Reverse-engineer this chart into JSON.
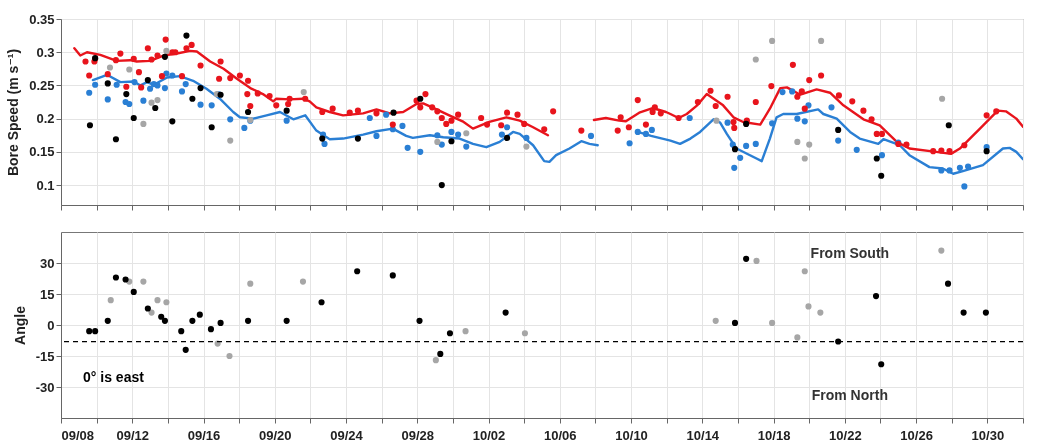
{
  "chart_data": [
    {
      "type": "scatter",
      "ylabel": "Bore Speed (m s⁻¹)",
      "xlim": [
        "--09-08",
        "--11-01"
      ],
      "ylim": [
        0.07,
        0.35
      ],
      "yticks": [
        0.1,
        0.15,
        0.2,
        0.25,
        0.3,
        0.35
      ],
      "xticks": [
        {
          "value": "--09-08",
          "label": "09/08"
        },
        {
          "value": "--09-10",
          "label": null
        },
        {
          "value": "--09-12",
          "label": "09/12"
        },
        {
          "value": "--09-14",
          "label": null
        },
        {
          "value": "--09-16",
          "label": "09/16"
        },
        {
          "value": "--09-18",
          "label": null
        },
        {
          "value": "--09-20",
          "label": "09/20"
        },
        {
          "value": "--09-22",
          "label": null
        },
        {
          "value": "--09-24",
          "label": "09/24"
        },
        {
          "value": "--09-26",
          "label": null
        },
        {
          "value": "--09-28",
          "label": "09/28"
        },
        {
          "value": "--09-30",
          "label": null
        },
        {
          "value": "--10-02",
          "label": "10/02"
        },
        {
          "value": "--10-04",
          "label": null
        },
        {
          "value": "--10-06",
          "label": "10/06"
        },
        {
          "value": "--10-08",
          "label": null
        },
        {
          "value": "--10-10",
          "label": "10/10"
        },
        {
          "value": "--10-12",
          "label": null
        },
        {
          "value": "--10-14",
          "label": "10/14"
        },
        {
          "value": "--10-16",
          "label": null
        },
        {
          "value": "--10-18",
          "label": "10/18"
        },
        {
          "value": "--10-20",
          "label": null
        },
        {
          "value": "--10-22",
          "label": "10/22"
        },
        {
          "value": "--10-24",
          "label": null
        },
        {
          "value": "--10-26",
          "label": "10/26"
        },
        {
          "value": "--10-28",
          "label": null
        },
        {
          "value": "--10-30",
          "label": "10/30"
        },
        {
          "value": "--11-01",
          "label": null
        }
      ],
      "tick_labels": "y",
      "grid": true,
      "marker": "circle",
      "series": [
        {
          "type": "line",
          "marker": "none",
          "color": "#2a7fd4",
          "x": [
            "--09-09T19:00",
            "--09-10T14:00",
            "--09-11T08:00",
            "--09-12T02:00",
            "--09-12T11:00",
            "--09-12T20:00",
            "--09-13T05:00",
            "--09-13T23:00",
            "--09-14T16:00",
            "--09-15T10:00",
            "--09-16T04:00",
            "--09-16T22:00",
            "--09-17T16:00",
            "--09-18T01:00",
            "--09-18T19:00",
            "--09-19T13:00",
            "--09-20T07:00",
            "--09-21T01:00",
            "--09-21T17:00",
            "--09-22T08:00",
            "--09-23T02:00",
            "--09-23T20:00",
            "--09-24T23:00",
            "--09-25T17:00",
            "--09-26T15:00",
            "--09-27T09:00",
            "--09-27T18:00",
            "--09-28T17:00",
            "--09-29T11:00",
            "--09-30T09:00",
            "--10-01T03:00",
            "--10-01T21:00",
            "--10-02T15:00",
            "--10-03T09:00",
            "--10-03T18:00",
            "--10-04T12:00",
            "--10-05T03:00",
            "--10-05T10:00",
            "--10-05T19:00",
            "--10-06T13:00",
            "--10-07T05:00",
            "--10-07T16:00",
            "--10-08T03:00",
            "--10-09T06:00",
            "--10-10T09:00",
            "--10-11T03:00",
            "--10-12T05:00",
            "--10-12T18:00",
            "--10-13T08:00",
            "--10-13T21:00",
            "--10-14T15:00",
            "--10-15T00:00",
            "--10-15T09:00",
            "--10-15T22:00",
            "--10-17T01:00",
            "--10-17T08:00",
            "--10-17T19:00",
            "--10-18T04:00",
            "--10-18T13:00",
            "--10-19T07:00",
            "--10-20T12:00",
            "--10-20T19:00",
            "--10-21T13:00",
            "--10-22T07:00",
            "--10-22T20:00",
            "--10-23T21:00",
            "--10-24T04:00",
            "--10-25T02:00",
            "--10-25T15:00",
            "--10-26T18:00",
            "--10-27T12:00",
            "--10-28T02:00",
            "--10-28T15:00",
            "--10-29T18:00",
            "--10-30T21:00",
            "--10-31T06:00",
            "--10-31T15:00",
            "--11-01T00:00"
          ],
          "values": [
            0.258,
            0.266,
            0.255,
            0.256,
            0.25,
            0.255,
            0.251,
            0.262,
            0.264,
            0.257,
            0.245,
            0.23,
            0.21,
            0.202,
            0.2,
            0.205,
            0.21,
            0.199,
            0.205,
            0.182,
            0.169,
            0.17,
            0.176,
            0.181,
            0.185,
            0.174,
            0.171,
            0.175,
            0.172,
            0.17,
            0.162,
            0.157,
            0.165,
            0.18,
            0.177,
            0.16,
            0.136,
            0.135,
            0.145,
            0.155,
            0.166,
            0.162,
            0.16,
            null,
            0.18,
            0.174,
            0.167,
            0.162,
            0.17,
            0.18,
            0.199,
            0.194,
            0.177,
            0.155,
            0.14,
            0.136,
            0.17,
            0.202,
            0.207,
            0.207,
            0.214,
            0.207,
            0.2,
            0.18,
            0.17,
            0.162,
            0.169,
            0.16,
            0.145,
            0.127,
            0.125,
            0.117,
            0.121,
            0.13,
            0.155,
            0.156,
            0.15,
            0.139
          ]
        },
        {
          "type": "line",
          "marker": "none",
          "color": "#e8141c",
          "x": [
            "--09-08T18:00",
            "--09-09T02:00",
            "--09-09T11:00",
            "--09-10T05:00",
            "--09-11T03:00",
            "--09-11T21:00",
            "--09-12T06:00",
            "--09-13T00:00",
            "--09-13T18:00",
            "--09-14T12:00",
            "--09-15T06:00",
            "--09-15T15:00",
            "--09-16T09:00",
            "--09-17T03:00",
            "--09-17T21:00",
            "--09-18T15:00",
            "--09-19T08:00",
            "--09-19T22:00",
            "--09-20T02:00",
            "--09-20T20:00",
            "--09-21T14:00",
            "--09-21T23:00",
            "--09-22T08:00",
            "--09-23T02:00",
            "--09-23T20:00",
            "--09-24T23:00",
            "--09-25T17:00",
            "--09-26T11:00",
            "--09-27T05:00",
            "--09-27T23:00",
            "--09-28T08:00",
            "--09-29T02:00",
            "--09-29T19:00",
            "--09-30T13:00",
            "--10-01T03:00",
            "--10-02T01:00",
            "--10-03T00:00",
            "--10-03T18:00",
            "--10-04T12:00",
            "--10-05T08:00",
            "--10-06T12:00",
            "--10-07T22:00",
            "--10-08T14:00",
            "--10-09T08:00",
            "--10-09T17:00",
            "--10-10T11:00",
            "--10-11T05:00",
            "--10-11T23:00",
            "--10-12T05:00",
            "--10-12T16:00",
            "--10-13T03:00",
            "--10-13T17:00",
            "--10-14T06:00",
            "--10-15T04:00",
            "--10-15T18:00",
            "--10-16T07:00",
            "--10-17T06:00",
            "--10-17T19:00",
            "--10-18T09:00",
            "--10-18T18:00",
            "--10-19T12:00",
            "--10-20T10:00",
            "--10-21T04:00",
            "--10-21T22:00",
            "--10-23T01:00",
            "--10-23T23:00",
            "--10-24T22:00",
            "--10-25T15:00",
            "--10-27T03:00",
            "--10-27T23:00",
            "--10-28T11:00",
            "--10-29T14:00",
            "--10-30T14:00",
            "--10-31T01:00",
            "--10-31T15:00",
            "--11-01T00:00"
          ],
          "values": [
            0.306,
            0.295,
            0.3,
            0.296,
            0.287,
            0.288,
            0.286,
            0.287,
            0.295,
            0.298,
            0.302,
            0.301,
            0.286,
            0.275,
            0.26,
            0.246,
            0.237,
            0.226,
            0.23,
            0.229,
            0.23,
            0.226,
            0.217,
            0.21,
            0.205,
            0.208,
            0.214,
            0.208,
            0.21,
            0.222,
            0.223,
            0.214,
            0.205,
            0.196,
            0.185,
            0.195,
            0.202,
            0.197,
            0.187,
            0.175,
            null,
            0.198,
            0.201,
            0.197,
            0.196,
            0.209,
            0.216,
            0.21,
            0.207,
            0.201,
            0.207,
            0.22,
            0.237,
            0.22,
            0.202,
            0.195,
            0.191,
            0.215,
            0.246,
            0.247,
            0.236,
            0.244,
            0.239,
            0.22,
            0.199,
            0.19,
            0.165,
            0.155,
            0.15,
            0.147,
            0.155,
            0.185,
            0.212,
            0.211,
            0.2,
            0.188
          ]
        },
        {
          "type": "scatter",
          "color": "#2a7fd4",
          "x": [
            "--09-09T14:00",
            "--09-09T22:00",
            "--09-10T15:00",
            "--09-11T03:00",
            "--09-11T15:00",
            "--09-11T20:00",
            "--09-12T03:00",
            "--09-12T15:00",
            "--09-13T00:00",
            "--09-13T05:00",
            "--09-13T10:00",
            "--09-13T20:00",
            "--09-13T22:00",
            "--09-14T06:00",
            "--09-14T19:00",
            "--09-15T00:00",
            "--09-15T20:00",
            "--09-16T11:00",
            "--09-16T20:00",
            "--09-17T12:00",
            "--09-18T07:00",
            "--09-18T15:00",
            "--09-20T16:00",
            "--09-22T17:00",
            "--09-22T19:00",
            "--09-25T08:00",
            "--09-25T17:00",
            "--09-26T06:00",
            "--09-26T15:00",
            "--09-27T04:00",
            "--09-27T11:00",
            "--09-28T04:00",
            "--09-29T03:00",
            "--09-29T09:00",
            "--09-29T22:00",
            "--09-30T07:00",
            "--09-30T18:00",
            "--10-02T18:00",
            "--10-03T01:00",
            "--10-04T03:00",
            "--10-07T18:00",
            "--10-09T22:00",
            "--10-10T09:00",
            "--10-10T20:00",
            "--10-11T04:00",
            "--10-13T07:00",
            "--10-15T10:00",
            "--10-15T17:00",
            "--10-15T19:00",
            "--10-16T03:00",
            "--10-16T11:00",
            "--10-17T00:00",
            "--10-17T22:00",
            "--10-18T12:00",
            "--10-19T01:00",
            "--10-19T08:00",
            "--10-19T18:00",
            "--10-19T23:00",
            "--10-21T06:00",
            "--10-21T15:00",
            "--10-22T16:00",
            "--10-24T02:00",
            "--10-25T00:00",
            "--10-27T10:00",
            "--10-27T21:00",
            "--10-28T11:00",
            "--10-28T17:00",
            "--10-28T22:00",
            "--10-29T23:00"
          ],
          "values": [
            0.239,
            0.251,
            0.229,
            0.251,
            0.225,
            0.222,
            0.255,
            0.227,
            0.245,
            0.252,
            0.25,
            0.246,
            0.268,
            0.265,
            0.241,
            0.252,
            0.221,
            0.22,
            0.237,
            0.199,
            0.186,
            0.197,
            0.197,
            0.176,
            0.162,
            0.201,
            0.174,
            0.206,
            0.184,
            0.189,
            0.156,
            0.15,
            0.175,
            0.161,
            0.18,
            0.176,
            0.158,
            0.176,
            0.187,
            0.171,
            0.174,
            0.163,
            0.18,
            0.177,
            0.183,
            0.201,
            0.194,
            0.161,
            0.126,
            0.141,
            0.159,
            0.162,
            0.193,
            0.24,
            0.241,
            0.2,
            0.196,
            0.22,
            0.217,
            0.167,
            0.153,
            0.145,
            0.164,
            0.122,
            0.122,
            0.126,
            0.098,
            0.128,
            0.157
          ]
        },
        {
          "type": "scatter",
          "color": "#e8141c",
          "x": [
            "--09-09T09:00",
            "--09-09T14:00",
            "--09-09T21:00",
            "--09-09T22:00",
            "--09-10T15:00",
            "--09-11T02:00",
            "--09-11T08:00",
            "--09-11T16:00",
            "--09-12T02:00",
            "--09-12T09:00",
            "--09-12T12:00",
            "--09-12T21:00",
            "--09-13T02:00",
            "--09-13T10:00",
            "--09-13T16:00",
            "--09-13T21:00",
            "--09-14T06:00",
            "--09-14T10:00",
            "--09-14T19:00",
            "--09-15T01:00",
            "--09-15T08:00",
            "--09-15T20:00",
            "--09-16T23:00",
            "--09-16T21:00",
            "--09-17T12:00",
            "--09-18T01:00",
            "--09-18T12:00",
            "--09-18T11:00",
            "--09-18T15:00",
            "--09-19T01:00",
            "--09-19T17:00",
            "--09-20T02:00",
            "--09-20T18:00",
            "--09-20T20:00",
            "--09-21T17:00",
            "--09-22T16:00",
            "--09-23T06:00",
            "--09-24T05:00",
            "--09-24T16:00",
            "--09-25T17:00",
            "--09-26T15:00",
            "--09-27T23:00",
            "--09-28T11:00",
            "--09-28T04:00",
            "--09-28T20:00",
            "--09-29T03:00",
            "--09-29T09:00",
            "--09-29T15:00",
            "--09-29T22:00",
            "--09-30T07:00",
            "--10-01T14:00",
            "--10-01T22:00",
            "--10-02T17:00",
            "--10-03T01:00",
            "--10-03T15:00",
            "--10-04T00:00",
            "--10-05T03:00",
            "--10-05T15:00",
            "--10-07T05:00",
            "--10-09T06:00",
            "--10-09T10:00",
            "--10-09T21:00",
            "--10-10T09:00",
            "--10-10T20:00",
            "--10-11T05:00",
            "--10-11T08:00",
            "--10-11T16:00",
            "--10-12T16:00",
            "--10-13T18:00",
            "--10-14T11:00",
            "--10-14T18:00",
            "--10-15T10:00",
            "--10-15T18:00",
            "--10-15T19:00",
            "--10-16T12:00",
            "--10-17T00:00",
            "--10-17T21:00",
            "--10-19T02:00",
            "--10-19T08:00",
            "--10-19T14:00",
            "--10-19T18:00",
            "--10-20T00:00",
            "--10-20T16:00",
            "--10-21T16:00",
            "--10-22T10:00",
            "--10-23T01:00",
            "--10-23T12:00",
            "--10-23T19:00",
            "--10-24T02:00",
            "--10-25T00:00",
            "--10-25T11:00",
            "--10-26T23:00",
            "--10-27T10:00",
            "--10-27T21:00",
            "--10-28T17:00",
            "--10-29T23:00",
            "--10-30T12:00"
          ],
          "values": [
            0.286,
            0.265,
            0.286,
            0.29,
            0.267,
            0.288,
            0.298,
            0.248,
            0.29,
            0.27,
            0.247,
            0.306,
            0.289,
            0.295,
            0.264,
            0.319,
            0.3,
            0.3,
            0.264,
            0.306,
            0.311,
            0.28,
            0.286,
            0.26,
            0.261,
            0.265,
            0.257,
            0.237,
            0.219,
            0.238,
            0.234,
            0.22,
            0.222,
            0.23,
            0.23,
            0.21,
            0.215,
            0.209,
            0.212,
            0.208,
            0.191,
            0.227,
            0.237,
            0.217,
            0.217,
            0.211,
            0.201,
            0.192,
            0.197,
            0.206,
            0.201,
            0.191,
            0.19,
            0.209,
            0.206,
            0.192,
            0.184,
            0.211,
            0.182,
            0.182,
            0.202,
            0.187,
            0.228,
            0.191,
            0.21,
            0.217,
            0.208,
            0.201,
            0.225,
            0.242,
            0.219,
            0.233,
            0.195,
            0.186,
            0.197,
            0.225,
            0.249,
            0.281,
            0.233,
            0.241,
            0.215,
            0.258,
            0.265,
            0.235,
            0.226,
            0.212,
            0.199,
            0.177,
            0.177,
            0.162,
            0.161,
            0.151,
            0.152,
            0.151,
            0.16,
            0.205,
            0.211
          ]
        },
        {
          "type": "scatter",
          "color": "#a6a6a6",
          "x": [
            "--09-10T18:00",
            "--09-11T20:00",
            "--09-12T15:00",
            "--09-13T02:00",
            "--09-13T10:00",
            "--09-13T22:00",
            "--09-16T18:00",
            "--09-17T12:00",
            "--09-18T15:00",
            "--09-21T15:00",
            "--09-29T03:00",
            "--09-30T18:00",
            "--10-04T03:00",
            "--10-14T19:00",
            "--10-17T00:00",
            "--10-17T22:00",
            "--10-19T08:00",
            "--10-19T18:00",
            "--10-20T00:00",
            "--10-20T16:00",
            "--10-27T11:00"
          ],
          "values": [
            0.277,
            0.274,
            0.192,
            0.224,
            0.228,
            0.302,
            0.237,
            0.167,
            0.198,
            0.24,
            0.165,
            0.178,
            0.158,
            0.197,
            0.289,
            0.317,
            0.165,
            0.14,
            0.161,
            0.317,
            0.23
          ]
        },
        {
          "type": "scatter",
          "color": "#000000",
          "x": [
            "--09-09T15:00",
            "--09-09T22:00",
            "--09-10T15:00",
            "--09-11T02:00",
            "--09-11T16:00",
            "--09-12T02:00",
            "--09-12T21:00",
            "--09-13T07:00",
            "--09-13T20:00",
            "--09-14T06:00",
            "--09-15T01:00",
            "--09-15T09:00",
            "--09-15T20:00",
            "--09-16T11:00",
            "--09-16T23:00",
            "--09-18T12:00",
            "--09-20T16:00",
            "--09-22T16:00",
            "--09-24T16:00",
            "--09-26T16:00",
            "--09-28T04:00",
            "--09-29T09:00",
            "--09-29T22:00",
            "--10-03T01:00",
            "--10-15T20:00",
            "--10-16T11:00",
            "--10-21T15:00",
            "--10-23T19:00",
            "--10-24T01:00",
            "--10-27T20:00",
            "--10-29T23:00"
          ],
          "values": [
            0.19,
            0.291,
            0.253,
            0.169,
            0.237,
            0.201,
            0.258,
            0.216,
            0.293,
            0.196,
            0.325,
            0.23,
            0.246,
            0.187,
            0.236,
            0.21,
            0.212,
            0.17,
            0.17,
            0.209,
            0.23,
            0.1,
            0.166,
            0.171,
            0.154,
            0.192,
            0.183,
            0.14,
            0.114,
            0.19,
            0.151
          ]
        }
      ]
    },
    {
      "type": "scatter",
      "ylabel": "Angle",
      "xlim": [
        "--09-08",
        "--11-01"
      ],
      "ylim": [
        -45,
        45
      ],
      "yticks": [
        -30,
        -15,
        0,
        15,
        30
      ],
      "xticks": [
        {
          "value": "--09-08",
          "label": "09/08"
        },
        {
          "value": "--09-10",
          "label": null
        },
        {
          "value": "--09-12",
          "label": "09/12"
        },
        {
          "value": "--09-14",
          "label": null
        },
        {
          "value": "--09-16",
          "label": "09/16"
        },
        {
          "value": "--09-18",
          "label": null
        },
        {
          "value": "--09-20",
          "label": "09/20"
        },
        {
          "value": "--09-22",
          "label": null
        },
        {
          "value": "--09-24",
          "label": "09/24"
        },
        {
          "value": "--09-26",
          "label": null
        },
        {
          "value": "--09-28",
          "label": "09/28"
        },
        {
          "value": "--09-30",
          "label": null
        },
        {
          "value": "--10-02",
          "label": "10/02"
        },
        {
          "value": "--10-04",
          "label": null
        },
        {
          "value": "--10-06",
          "label": "10/06"
        },
        {
          "value": "--10-08",
          "label": null
        },
        {
          "value": "--10-10",
          "label": "10/10"
        },
        {
          "value": "--10-12",
          "label": null
        },
        {
          "value": "--10-14",
          "label": "10/14"
        },
        {
          "value": "--10-16",
          "label": null
        },
        {
          "value": "--10-18",
          "label": "10/18"
        },
        {
          "value": "--10-20",
          "label": null
        },
        {
          "value": "--10-22",
          "label": "10/22"
        },
        {
          "value": "--10-24",
          "label": null
        },
        {
          "value": "--10-26",
          "label": "10/26"
        },
        {
          "value": "--10-28",
          "label": null
        },
        {
          "value": "--10-30",
          "label": "10/30"
        },
        {
          "value": "--11-01",
          "label": null
        }
      ],
      "grid": true,
      "marker": "circle",
      "series": [
        {
          "type": "scatter",
          "color": "#a6a6a6",
          "x": [
            "--09-10T19:00",
            "--09-11T20:00",
            "--09-12T15:00",
            "--09-13T02:00",
            "--09-13T10:00",
            "--09-13T22:00",
            "--09-16T19:00",
            "--09-17T11:00",
            "--09-18T15:00",
            "--09-21T14:00",
            "--09-29T01:00",
            "--09-30T17:00",
            "--10-04T01:00",
            "--10-14T18:00",
            "--10-17T01:00",
            "--10-17T22:00",
            "--10-19T08:00",
            "--10-19T18:00",
            "--10-19T23:00",
            "--10-20T15:00",
            "--10-27T10:00"
          ],
          "values": [
            12,
            21,
            21,
            6,
            12,
            11,
            -9,
            -15,
            20,
            21,
            -17,
            -3,
            -4,
            2,
            31,
            1,
            -6,
            26,
            9,
            6,
            36
          ]
        },
        {
          "type": "scatter",
          "color": "#000000",
          "x": [
            "--09-09T14:00",
            "--09-09T22:00",
            "--09-10T15:00",
            "--09-11T02:00",
            "--09-11T15:00",
            "--09-12T02:00",
            "--09-12T21:00",
            "--09-13T15:00",
            "--09-13T20:00",
            "--09-14T18:00",
            "--09-15T00:00",
            "--09-15T09:00",
            "--09-15T19:00",
            "--09-16T10:00",
            "--09-16T23:00",
            "--09-18T12:00",
            "--09-20T16:00",
            "--09-22T15:00",
            "--09-24T15:00",
            "--09-26T15:00",
            "--09-28T03:00",
            "--09-29T07:00",
            "--09-29T20:00",
            "--10-02T23:00",
            "--10-15T20:00",
            "--10-16T11:00",
            "--10-21T15:00",
            "--10-23T18:00",
            "--10-24T01:00",
            "--10-27T19:00",
            "--10-28T16:00",
            "--10-29T22:00"
          ],
          "values": [
            -3,
            -3,
            2,
            23,
            22,
            16,
            8,
            4,
            2,
            -3,
            -12,
            2,
            5,
            -2,
            1,
            2,
            2,
            11,
            26,
            24,
            2,
            -14,
            -4,
            6,
            1,
            32,
            -8,
            14,
            -19,
            20,
            6,
            6
          ]
        }
      ],
      "ref_lines": [
        {
          "axis": "y",
          "value": -8,
          "color": "#000000",
          "line_style": "dashed"
        }
      ],
      "annotations": [
        "From South",
        "From North",
        "0° is east"
      ]
    }
  ]
}
